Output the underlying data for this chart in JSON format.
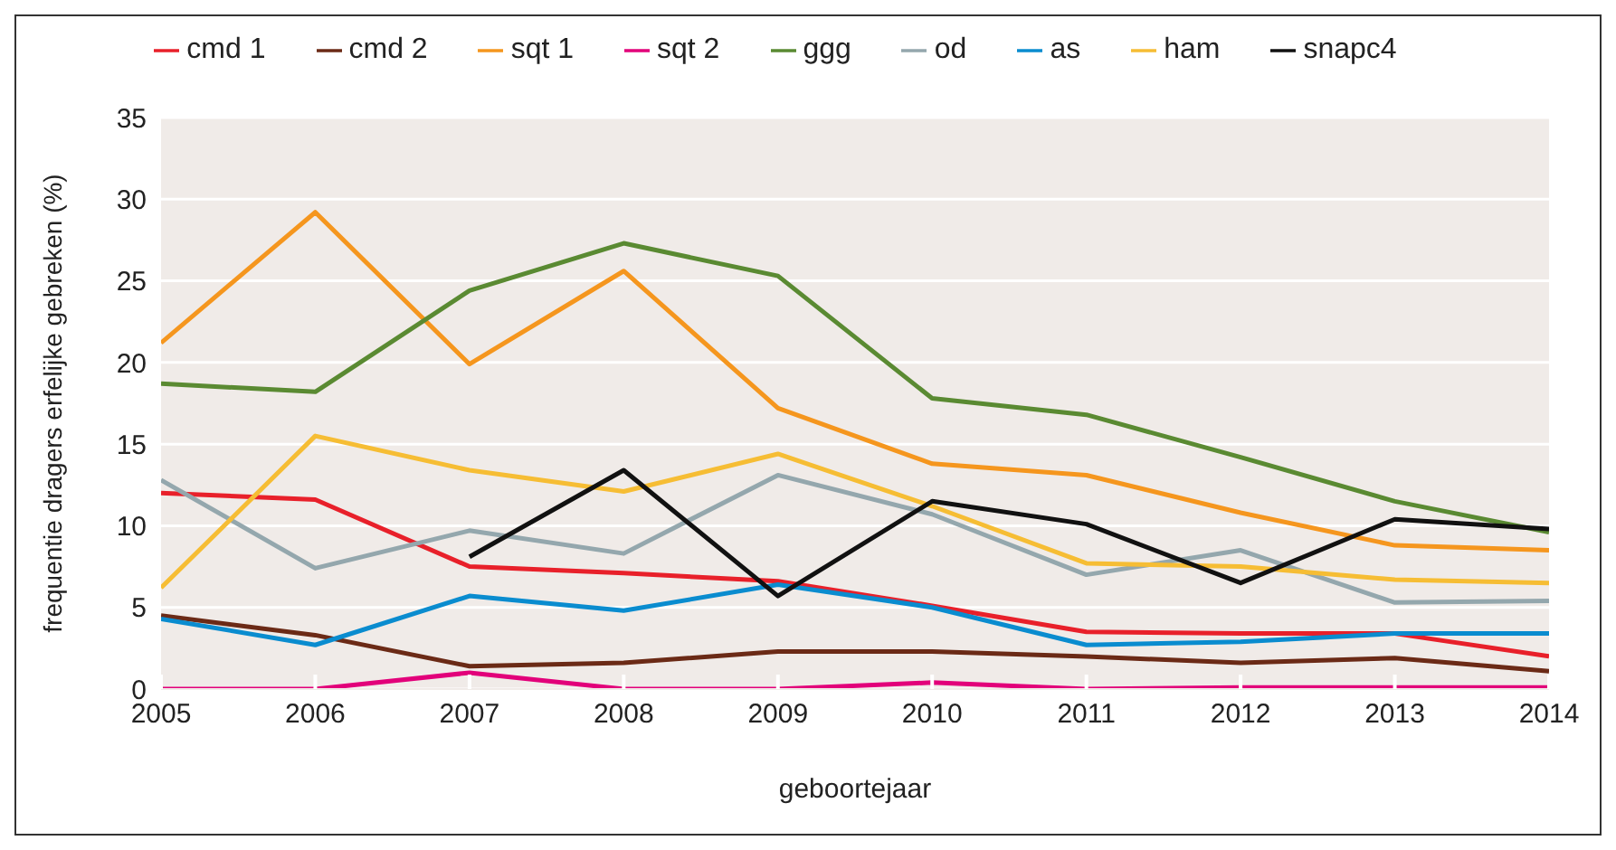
{
  "chart_data": {
    "type": "line",
    "xlabel": "geboortejaar",
    "ylabel": "frequentie dragers erfelijke gebreken (%)",
    "x": [
      2005,
      2006,
      2007,
      2008,
      2009,
      2010,
      2011,
      2012,
      2013,
      2014
    ],
    "xlim": [
      2005,
      2014
    ],
    "xticks": [
      2005,
      2006,
      2007,
      2008,
      2009,
      2010,
      2011,
      2012,
      2013,
      2014
    ],
    "ylim": [
      0,
      35
    ],
    "yticks": [
      0,
      5,
      10,
      15,
      20,
      25,
      30,
      35
    ],
    "grid": "y",
    "legend": "top",
    "marker": "none",
    "line_style": "solid",
    "series": [
      {
        "name": "cmd 1",
        "color": "#e8202a",
        "values": [
          12.0,
          11.6,
          7.5,
          7.1,
          6.6,
          5.1,
          3.5,
          3.4,
          3.4,
          2.0
        ]
      },
      {
        "name": "cmd 2",
        "color": "#6b2a16",
        "values": [
          4.5,
          3.3,
          1.4,
          1.6,
          2.3,
          2.3,
          2.0,
          1.6,
          1.9,
          1.1
        ]
      },
      {
        "name": "sqt 1",
        "color": "#f5961e",
        "values": [
          21.2,
          29.2,
          19.9,
          25.6,
          17.2,
          13.8,
          13.1,
          10.8,
          8.8,
          8.5
        ]
      },
      {
        "name": "sqt 2",
        "color": "#e2007a",
        "values": [
          0,
          0,
          1.0,
          0,
          0,
          0.4,
          0,
          0.1,
          0.1,
          0.1
        ]
      },
      {
        "name": "ggg",
        "color": "#5a8a32",
        "values": [
          18.7,
          18.2,
          24.4,
          27.3,
          25.3,
          17.8,
          16.8,
          14.2,
          11.5,
          9.6
        ]
      },
      {
        "name": "od",
        "color": "#94a7ad",
        "values": [
          12.8,
          7.4,
          9.7,
          8.3,
          13.1,
          10.7,
          7.0,
          8.5,
          5.3,
          5.4
        ]
      },
      {
        "name": "as",
        "color": "#0a8ccf",
        "values": [
          4.3,
          2.7,
          5.7,
          4.8,
          6.4,
          5.0,
          2.7,
          2.9,
          3.4,
          3.4
        ]
      },
      {
        "name": "ham",
        "color": "#f6bd34",
        "values": [
          6.2,
          15.5,
          13.4,
          12.1,
          14.4,
          11.2,
          7.7,
          7.5,
          6.7,
          6.5
        ]
      },
      {
        "name": "snapc4",
        "color": "#111111",
        "values": [
          null,
          null,
          8.1,
          13.4,
          5.7,
          11.5,
          10.1,
          6.5,
          10.4,
          9.8
        ]
      }
    ]
  }
}
